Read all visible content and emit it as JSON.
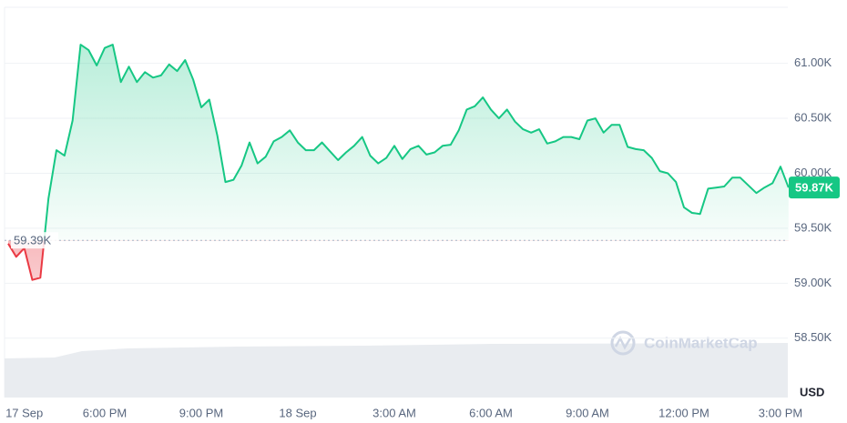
{
  "chart_data": {
    "type": "line",
    "categories": [
      null,
      null,
      "17 Sep",
      null,
      null,
      null,
      null,
      null,
      null,
      null,
      null,
      null,
      "6:00 PM",
      null,
      null,
      null,
      null,
      null,
      null,
      null,
      null,
      null,
      null,
      null,
      "9:00 PM",
      null,
      null,
      null,
      null,
      null,
      null,
      null,
      null,
      null,
      null,
      null,
      "18 Sep",
      null,
      null,
      null,
      null,
      null,
      null,
      null,
      null,
      null,
      null,
      null,
      "3:00 AM",
      null,
      null,
      null,
      null,
      null,
      null,
      null,
      null,
      null,
      null,
      null,
      "6:00 AM",
      null,
      null,
      null,
      null,
      null,
      null,
      null,
      null,
      null,
      null,
      null,
      "9:00 AM",
      null,
      null,
      null,
      null,
      null,
      null,
      null,
      null,
      null,
      null,
      null,
      "12:00 PM",
      null,
      null,
      null,
      null,
      null,
      null,
      null,
      null,
      null,
      null,
      null,
      "3:00 PM",
      null
    ],
    "values": [
      59360,
      59240,
      59320,
      59030,
      59050,
      59770,
      60210,
      60160,
      60480,
      61170,
      61120,
      60980,
      61140,
      61170,
      60830,
      60970,
      60830,
      60920,
      60870,
      60890,
      60990,
      60930,
      61030,
      60850,
      60600,
      60670,
      60340,
      59920,
      59940,
      60070,
      60280,
      60090,
      60150,
      60290,
      60330,
      60390,
      60280,
      60210,
      60210,
      60280,
      60200,
      60120,
      60190,
      60250,
      60330,
      60160,
      60090,
      60140,
      60250,
      60130,
      60220,
      60250,
      60170,
      60190,
      60250,
      60260,
      60390,
      60580,
      60610,
      60690,
      60580,
      60500,
      60580,
      60470,
      60400,
      60370,
      60400,
      60270,
      60290,
      60330,
      60330,
      60310,
      60480,
      60500,
      60370,
      60440,
      60440,
      60240,
      60220,
      60210,
      60140,
      60020,
      60000,
      59920,
      59690,
      59640,
      59630,
      59860,
      59870,
      59880,
      59960,
      59960,
      59890,
      59820,
      59870,
      59910,
      60060,
      59870
    ],
    "color": "#16c784",
    "negative_color": "#ea3943",
    "baseline": {
      "value": 59390,
      "label": "59.39K"
    },
    "last_price_label": "59.87K",
    "ylim": [
      57960,
      61510
    ],
    "yticks": [
      {
        "value": 58500,
        "label": "58.50K"
      },
      {
        "value": 59000,
        "label": "59.00K"
      },
      {
        "value": 59500,
        "label": "59.50K"
      },
      {
        "value": 60000,
        "label": "60.00K"
      },
      {
        "value": 60500,
        "label": "60.50K"
      },
      {
        "value": 61000,
        "label": "61.00K"
      }
    ],
    "grid": true,
    "currency": "USD",
    "watermark": "CoinMarketCap"
  }
}
